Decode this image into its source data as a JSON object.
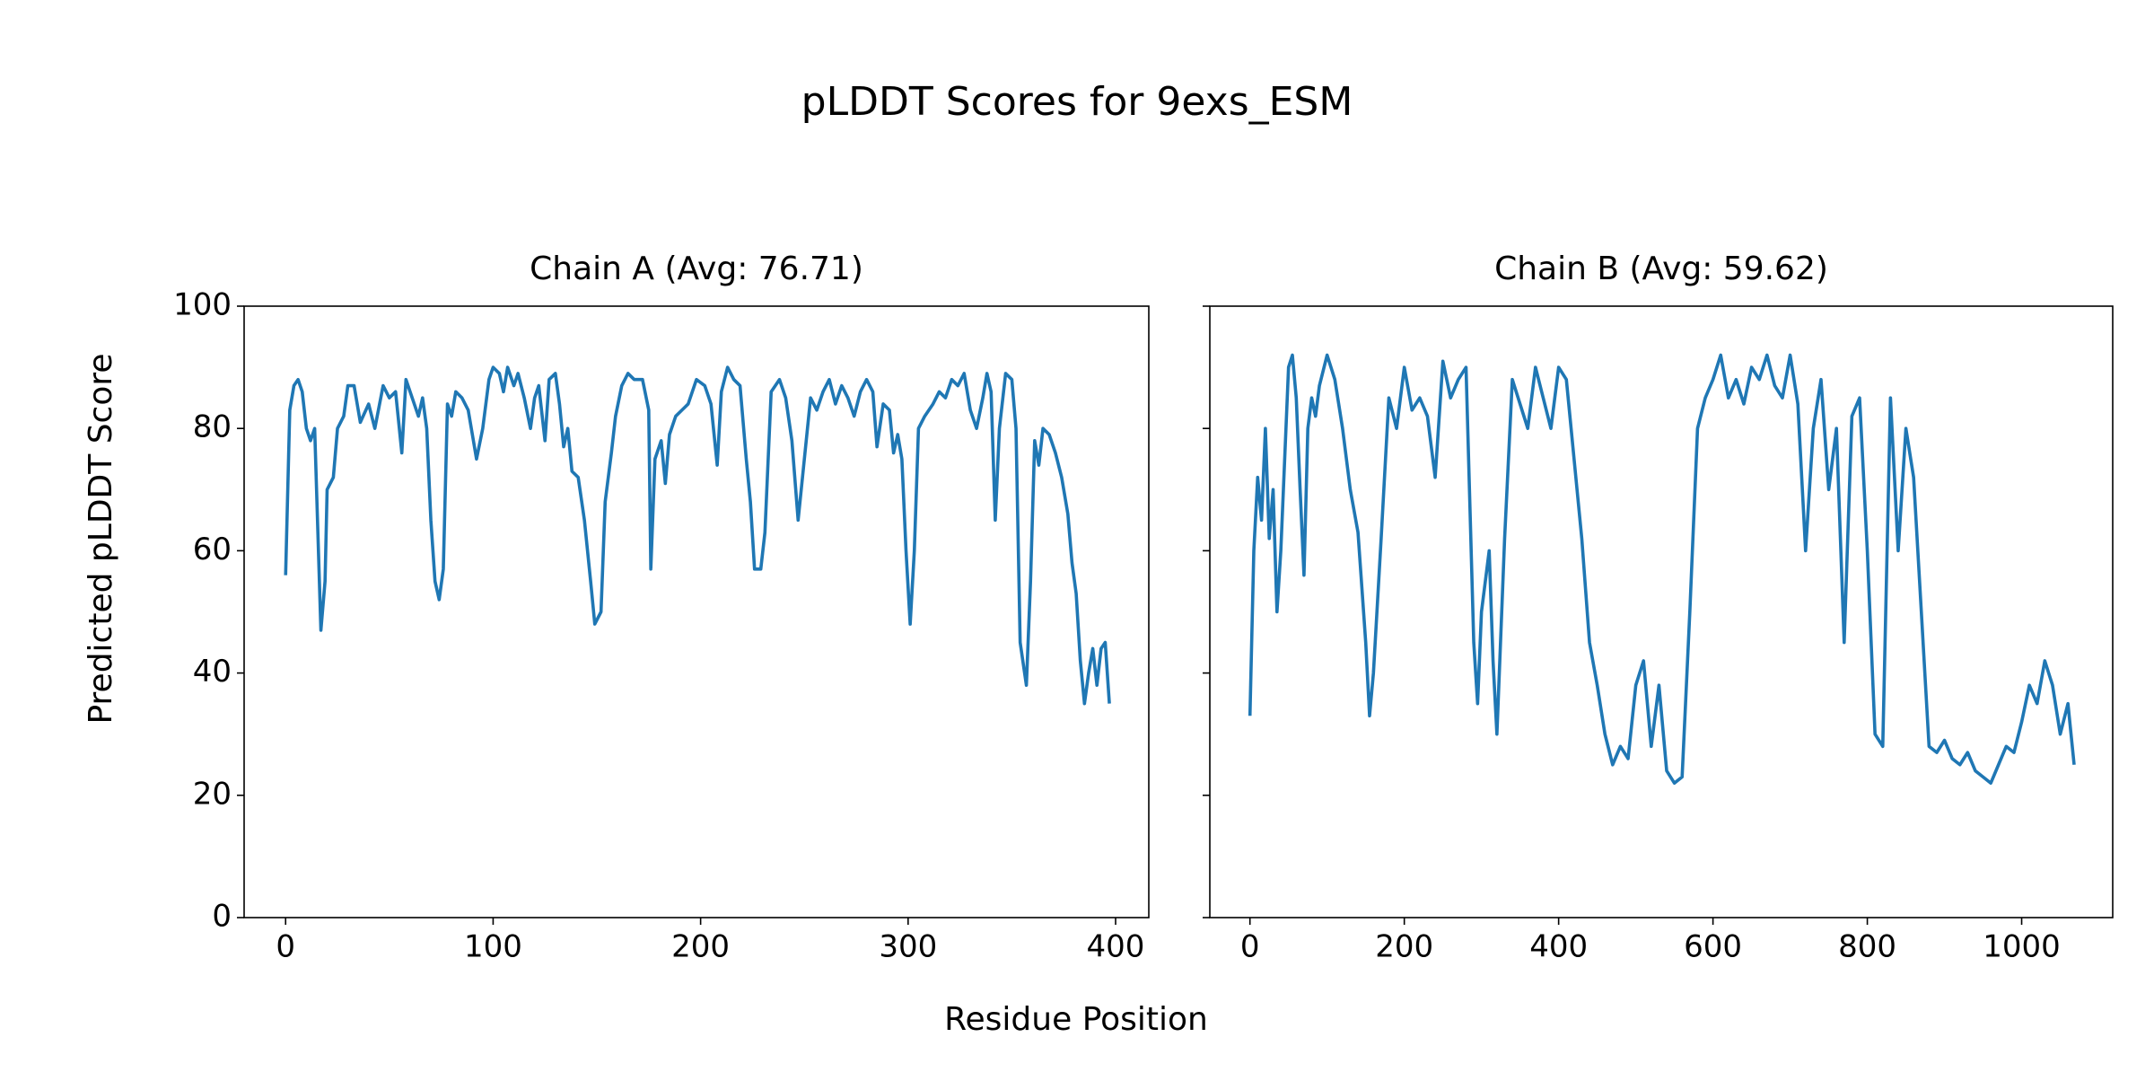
{
  "title": "pLDDT Scores for 9exs_ESM",
  "xlabel": "Residue Position",
  "ylabel": "Predicted pLDDT Score",
  "chart_data": [
    {
      "type": "line",
      "title": "Chain A (Avg: 76.71)",
      "color": "#1f77b4",
      "xlim": [
        -20,
        416
      ],
      "ylim": [
        0,
        100
      ],
      "xticks": [
        0,
        100,
        200,
        300,
        400
      ],
      "yticks": [
        0,
        20,
        40,
        60,
        80,
        100
      ],
      "ytick_labels": true,
      "x": [
        0,
        2,
        4,
        6,
        8,
        10,
        12,
        14,
        17,
        19,
        20,
        23,
        25,
        28,
        30,
        33,
        36,
        40,
        43,
        47,
        50,
        53,
        56,
        58,
        62,
        64,
        66,
        68,
        70,
        72,
        74,
        76,
        78,
        80,
        82,
        85,
        88,
        90,
        92,
        95,
        98,
        100,
        103,
        105,
        107,
        110,
        112,
        115,
        118,
        120,
        122,
        125,
        127,
        130,
        132,
        134,
        136,
        138,
        141,
        144,
        147,
        149,
        152,
        154,
        157,
        159,
        162,
        165,
        168,
        172,
        175,
        176,
        178,
        181,
        183,
        185,
        188,
        191,
        194,
        198,
        202,
        205,
        208,
        210,
        213,
        216,
        219,
        222,
        224,
        226,
        229,
        231,
        234,
        238,
        241,
        244,
        247,
        250,
        253,
        256,
        259,
        262,
        265,
        268,
        271,
        274,
        277,
        280,
        283,
        285,
        288,
        291,
        293,
        295,
        297,
        299,
        301,
        303,
        305,
        308,
        312,
        315,
        318,
        321,
        324,
        327,
        330,
        333,
        336,
        338,
        340,
        342,
        344,
        347,
        350,
        352,
        354,
        357,
        359,
        361,
        363,
        365,
        368,
        371,
        374,
        377,
        379,
        381,
        383,
        385,
        387,
        389,
        391,
        393,
        395,
        397
      ],
      "values": [
        56,
        83,
        87,
        88,
        86,
        80,
        78,
        80,
        47,
        55,
        70,
        72,
        80,
        82,
        87,
        87,
        81,
        84,
        80,
        87,
        85,
        86,
        76,
        88,
        84,
        82,
        85,
        80,
        65,
        55,
        52,
        57,
        84,
        82,
        86,
        85,
        83,
        79,
        75,
        80,
        88,
        90,
        89,
        86,
        90,
        87,
        89,
        85,
        80,
        85,
        87,
        78,
        88,
        89,
        84,
        77,
        80,
        73,
        72,
        65,
        55,
        48,
        50,
        68,
        76,
        82,
        87,
        89,
        88,
        88,
        83,
        57,
        75,
        78,
        71,
        79,
        82,
        83,
        84,
        88,
        87,
        84,
        74,
        86,
        90,
        88,
        87,
        75,
        68,
        57,
        57,
        63,
        86,
        88,
        85,
        78,
        65,
        75,
        85,
        83,
        86,
        88,
        84,
        87,
        85,
        82,
        86,
        88,
        86,
        77,
        84,
        83,
        76,
        79,
        75,
        60,
        48,
        60,
        80,
        82,
        84,
        86,
        85,
        88,
        87,
        89,
        83,
        80,
        85,
        89,
        86,
        65,
        80,
        89,
        88,
        80,
        45,
        38,
        55,
        78,
        74,
        80,
        79,
        76,
        72,
        66,
        58,
        53,
        42,
        35,
        40,
        44,
        38,
        44,
        45,
        35
      ]
    },
    {
      "type": "line",
      "title": "Chain B (Avg: 59.62)",
      "color": "#1f77b4",
      "xlim": [
        -52,
        1118
      ],
      "ylim": [
        0,
        100
      ],
      "xticks": [
        0,
        200,
        400,
        600,
        800,
        1000
      ],
      "yticks": [
        0,
        20,
        40,
        60,
        80,
        100
      ],
      "ytick_labels": false,
      "x": [
        0,
        5,
        10,
        15,
        20,
        25,
        30,
        35,
        40,
        45,
        50,
        55,
        60,
        65,
        70,
        75,
        80,
        85,
        90,
        100,
        110,
        120,
        130,
        140,
        150,
        155,
        160,
        170,
        180,
        190,
        200,
        210,
        220,
        230,
        240,
        250,
        260,
        270,
        280,
        290,
        295,
        300,
        310,
        315,
        320,
        330,
        340,
        350,
        360,
        370,
        380,
        390,
        400,
        410,
        420,
        430,
        440,
        450,
        460,
        470,
        480,
        490,
        500,
        510,
        520,
        530,
        540,
        550,
        560,
        570,
        580,
        590,
        600,
        610,
        620,
        630,
        640,
        650,
        660,
        670,
        680,
        690,
        700,
        710,
        720,
        730,
        740,
        750,
        760,
        770,
        780,
        790,
        800,
        810,
        820,
        830,
        840,
        850,
        860,
        870,
        880,
        890,
        900,
        910,
        920,
        930,
        940,
        950,
        960,
        970,
        980,
        990,
        1000,
        1010,
        1020,
        1030,
        1040,
        1050,
        1060,
        1068
      ],
      "values": [
        33,
        60,
        72,
        65,
        80,
        62,
        70,
        50,
        60,
        75,
        90,
        92,
        85,
        70,
        56,
        80,
        85,
        82,
        87,
        92,
        88,
        80,
        70,
        63,
        45,
        33,
        40,
        62,
        85,
        80,
        90,
        83,
        85,
        82,
        72,
        91,
        85,
        88,
        90,
        45,
        35,
        50,
        60,
        42,
        30,
        62,
        88,
        84,
        80,
        90,
        85,
        80,
        90,
        88,
        75,
        62,
        45,
        38,
        30,
        25,
        28,
        26,
        38,
        42,
        28,
        38,
        24,
        22,
        23,
        50,
        80,
        85,
        88,
        92,
        85,
        88,
        84,
        90,
        88,
        92,
        87,
        85,
        92,
        84,
        60,
        80,
        88,
        70,
        80,
        45,
        82,
        85,
        60,
        30,
        28,
        85,
        60,
        80,
        72,
        50,
        28,
        27,
        29,
        26,
        25,
        27,
        24,
        23,
        22,
        25,
        28,
        27,
        32,
        38,
        35,
        42,
        38,
        30,
        35,
        25
      ]
    }
  ]
}
